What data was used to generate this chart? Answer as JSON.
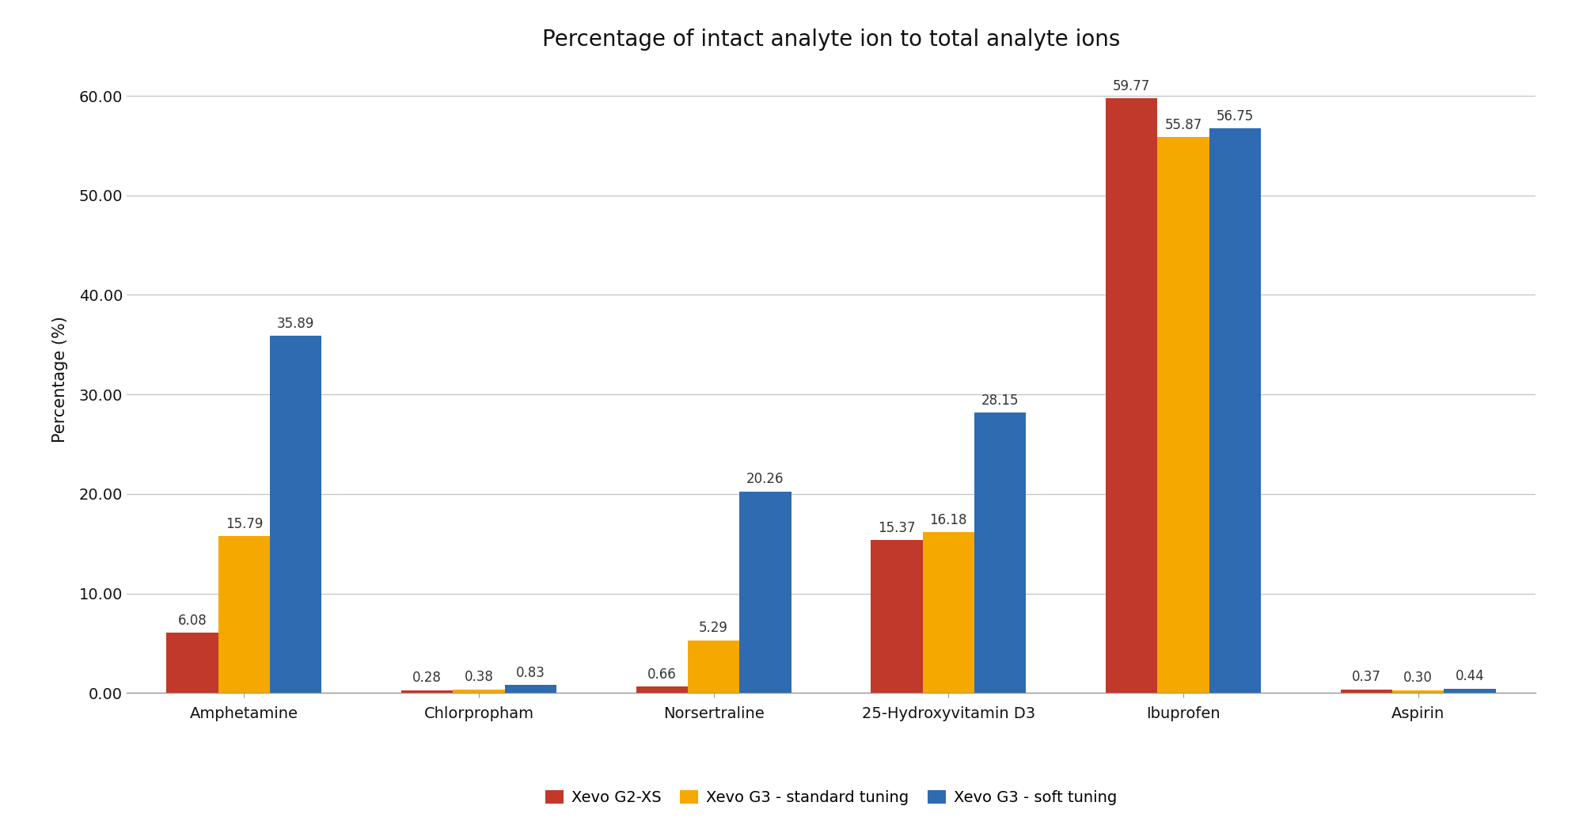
{
  "title": "Percentage of intact analyte ion to total analyte ions",
  "ylabel": "Percentage (%)",
  "categories": [
    "Amphetamine",
    "Chlorpropham",
    "Norsertraline",
    "25-Hydroxyvitamin D3",
    "Ibuprofen",
    "Aspirin"
  ],
  "series": [
    {
      "name": "Xevo G2-XS",
      "color": "#C0392B",
      "values": [
        6.08,
        0.28,
        0.66,
        15.37,
        59.77,
        0.37
      ]
    },
    {
      "name": "Xevo G3 - standard tuning",
      "color": "#F5A800",
      "values": [
        15.79,
        0.38,
        5.29,
        16.18,
        55.87,
        0.3
      ]
    },
    {
      "name": "Xevo G3 - soft tuning",
      "color": "#2E6BB0",
      "values": [
        35.89,
        0.83,
        20.26,
        28.15,
        56.75,
        0.44
      ]
    }
  ],
  "ylim": [
    0,
    63
  ],
  "yticks": [
    0.0,
    10.0,
    20.0,
    30.0,
    40.0,
    50.0,
    60.0
  ],
  "ytick_labels": [
    "0.00",
    "10.00",
    "20.00",
    "30.00",
    "40.00",
    "50.00",
    "60.00"
  ],
  "bar_width": 0.22,
  "background_color": "#FFFFFF",
  "grid_color": "#C8C8C8",
  "title_fontsize": 20,
  "label_fontsize": 15,
  "tick_fontsize": 14,
  "legend_fontsize": 14,
  "annotation_fontsize": 12
}
